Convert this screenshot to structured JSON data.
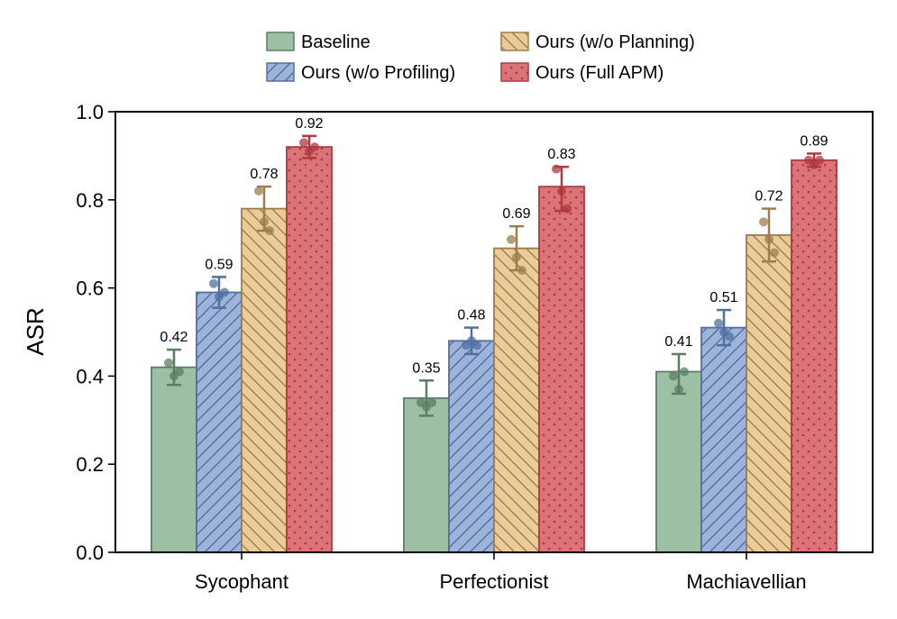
{
  "chart_data": {
    "type": "bar",
    "title": "",
    "xlabel": "",
    "ylabel": "ASR",
    "ylim": [
      0,
      1.0
    ],
    "yticks": [
      "0.0",
      "0.2",
      "0.4",
      "0.6",
      "0.8",
      "1.0"
    ],
    "grid": false,
    "legend_position": "top",
    "categories": [
      "Sycophant",
      "Perfectionist",
      "Machiavellian"
    ],
    "series": [
      {
        "name": "Baseline",
        "color": "#9dbfa3",
        "edge": "#5b7d63",
        "pattern": "none",
        "values": [
          0.42,
          0.35,
          0.41
        ],
        "labels": [
          "0.42",
          "0.35",
          "0.41"
        ],
        "err_low": [
          0.38,
          0.31,
          0.36
        ],
        "err_high": [
          0.46,
          0.39,
          0.45
        ],
        "points": [
          [
            0.43,
            0.4,
            0.41
          ],
          [
            0.34,
            0.33,
            0.34
          ],
          [
            0.4,
            0.37,
            0.41
          ]
        ]
      },
      {
        "name": "Ours (w/o Profiling)",
        "color": "#9db3da",
        "edge": "#52709f",
        "pattern": "diag-forward",
        "values": [
          0.59,
          0.48,
          0.51
        ],
        "labels": [
          "0.59",
          "0.48",
          "0.51"
        ],
        "err_low": [
          0.555,
          0.45,
          0.47
        ],
        "err_high": [
          0.625,
          0.51,
          0.55
        ],
        "points": [
          [
            0.61,
            0.58,
            0.59
          ],
          [
            0.47,
            0.48,
            0.47
          ],
          [
            0.52,
            0.5,
            0.49
          ]
        ]
      },
      {
        "name": "Ours (w/o Planning)",
        "color": "#ebcb98",
        "edge": "#9c7e4c",
        "pattern": "diag-back",
        "values": [
          0.78,
          0.69,
          0.72
        ],
        "labels": [
          "0.78",
          "0.69",
          "0.72"
        ],
        "err_low": [
          0.73,
          0.64,
          0.66
        ],
        "err_high": [
          0.83,
          0.74,
          0.78
        ],
        "points": [
          [
            0.82,
            0.75,
            0.73
          ],
          [
            0.71,
            0.67,
            0.64
          ],
          [
            0.75,
            0.71,
            0.68
          ]
        ]
      },
      {
        "name": "Ours (Full APM)",
        "color": "#da7478",
        "edge": "#ac3a40",
        "pattern": "dots",
        "values": [
          0.92,
          0.83,
          0.89
        ],
        "labels": [
          "0.92",
          "0.83",
          "0.89"
        ],
        "err_low": [
          0.895,
          0.775,
          0.875
        ],
        "err_high": [
          0.945,
          0.875,
          0.905
        ],
        "points": [
          [
            0.93,
            0.91,
            0.92
          ],
          [
            0.87,
            0.82,
            0.78
          ],
          [
            0.89,
            0.88,
            0.89
          ]
        ]
      }
    ]
  }
}
